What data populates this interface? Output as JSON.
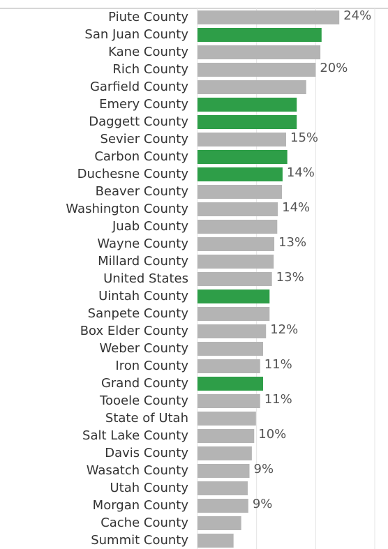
{
  "chart_data": {
    "type": "bar",
    "orientation": "horizontal",
    "categories": [
      "Piute County",
      "San Juan County",
      "Kane County",
      "Rich County",
      "Garfield County",
      "Emery County",
      "Daggett County",
      "Sevier County",
      "Carbon County",
      "Duchesne County",
      "Beaver County",
      "Washington County",
      "Juab County",
      "Wayne County",
      "Millard County",
      "United States",
      "Uintah County",
      "Sanpete County",
      "Box Elder County",
      "Weber County",
      "Iron County",
      "Grand County",
      "Tooele County",
      "State of Utah",
      "Salt Lake County",
      "Davis County",
      "Wasatch County",
      "Utah County",
      "Morgan County",
      "Cache County",
      "Summit County"
    ],
    "values": [
      24.0,
      21.0,
      20.8,
      20.0,
      18.4,
      16.8,
      16.8,
      15.0,
      15.2,
      14.4,
      14.3,
      13.6,
      13.5,
      13.0,
      12.9,
      12.6,
      12.2,
      12.2,
      11.6,
      11.1,
      10.6,
      11.1,
      10.6,
      9.9,
      9.6,
      9.2,
      8.8,
      8.5,
      8.6,
      7.4,
      6.1
    ],
    "value_labels": [
      "24%",
      null,
      null,
      "20%",
      null,
      null,
      null,
      "15%",
      null,
      "14%",
      null,
      "14%",
      null,
      "13%",
      null,
      "13%",
      null,
      null,
      "12%",
      null,
      "11%",
      null,
      "11%",
      null,
      "10%",
      null,
      "9%",
      null,
      "9%",
      null,
      null
    ],
    "colors": [
      "#b4b4b4",
      "#2e9e48",
      "#b4b4b4",
      "#b4b4b4",
      "#b4b4b4",
      "#2e9e48",
      "#2e9e48",
      "#b4b4b4",
      "#2e9e48",
      "#2e9e48",
      "#b4b4b4",
      "#b4b4b4",
      "#b4b4b4",
      "#b4b4b4",
      "#b4b4b4",
      "#b4b4b4",
      "#2e9e48",
      "#b4b4b4",
      "#b4b4b4",
      "#b4b4b4",
      "#b4b4b4",
      "#2e9e48",
      "#b4b4b4",
      "#b4b4b4",
      "#b4b4b4",
      "#b4b4b4",
      "#b4b4b4",
      "#b4b4b4",
      "#b4b4b4",
      "#b4b4b4",
      "#b4b4b4"
    ],
    "xlim": [
      0,
      30
    ],
    "xticks": [
      0,
      10,
      20,
      30
    ],
    "grid": true
  }
}
